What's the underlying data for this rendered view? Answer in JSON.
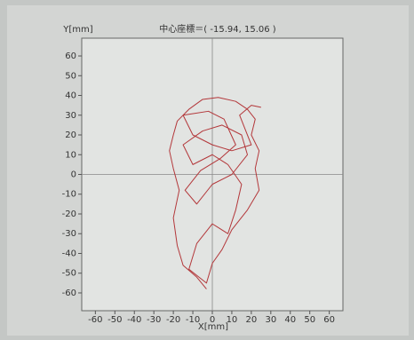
{
  "chart_data": {
    "type": "line",
    "title": "中心座標＝( -15.94, 15.06 )",
    "x_label": "X[mm]",
    "y_label": "Y[mm]",
    "x": [
      -3,
      -8,
      -15,
      -18,
      -20,
      -17,
      -20,
      -22,
      -20,
      -18,
      -12,
      -5,
      3,
      12,
      18,
      22,
      20,
      24,
      22,
      24,
      18,
      10,
      5,
      0,
      -3,
      -12,
      -8,
      0,
      8,
      12,
      15,
      8,
      0,
      -10,
      -15,
      -5,
      5,
      15,
      18,
      10,
      0,
      -8,
      -14,
      -6,
      4,
      12,
      6,
      -2,
      -15,
      -10,
      0,
      10,
      20,
      14,
      20,
      25
    ],
    "values": [
      -58,
      -52,
      -46,
      -36,
      -22,
      -8,
      3,
      12,
      20,
      27,
      33,
      38,
      39,
      37,
      33,
      28,
      20,
      12,
      3,
      -8,
      -18,
      -28,
      -38,
      -45,
      -55,
      -48,
      -35,
      -25,
      -30,
      -18,
      -5,
      5,
      10,
      5,
      15,
      22,
      25,
      20,
      10,
      0,
      -5,
      -15,
      -8,
      2,
      8,
      15,
      28,
      32,
      30,
      20,
      15,
      12,
      15,
      30,
      35,
      34
    ],
    "color": "#b3373a",
    "xlim": [
      -67,
      67
    ],
    "ylim": [
      -69,
      69
    ],
    "xticks": [
      -60,
      -50,
      -40,
      -30,
      -20,
      -10,
      0,
      10,
      20,
      30,
      40,
      50,
      60
    ],
    "yticks": [
      -60,
      -50,
      -40,
      -30,
      -20,
      -10,
      0,
      10,
      20,
      30,
      40,
      50,
      60
    ],
    "zero_lines": true
  }
}
